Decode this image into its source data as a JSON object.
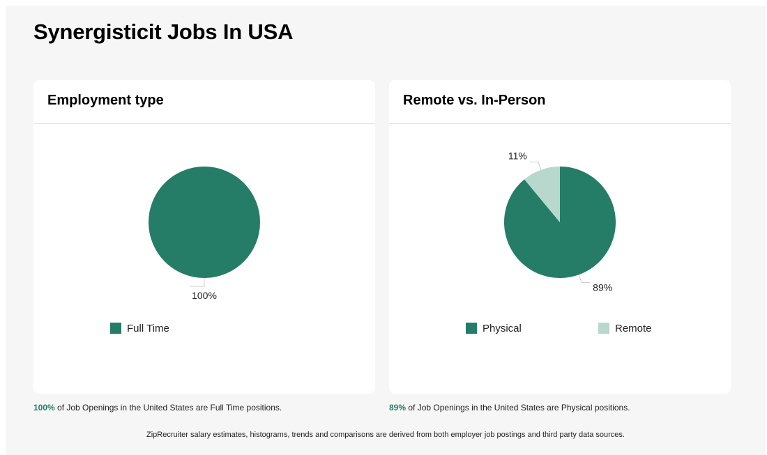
{
  "page": {
    "title": "Synergisticit Jobs In USA"
  },
  "colors": {
    "primary": "#267d67",
    "secondary": "#b8d8ce",
    "leader": "#cccccc"
  },
  "chart_data": [
    {
      "type": "pie",
      "title": "Employment type",
      "categories": [
        "Full Time"
      ],
      "values": [
        100
      ],
      "labels": [
        "100%"
      ],
      "legend_position": "bottom"
    },
    {
      "type": "pie",
      "title": "Remote vs. In-Person",
      "categories": [
        "Physical",
        "Remote"
      ],
      "values": [
        89,
        11
      ],
      "labels": [
        "89%",
        "11%"
      ],
      "legend_position": "bottom"
    }
  ],
  "captions": [
    {
      "highlight": "100%",
      "text": " of Job Openings in the United States are Full Time positions."
    },
    {
      "highlight": "89%",
      "text": " of Job Openings in the United States are Physical positions."
    }
  ],
  "footer": "ZipRecruiter salary estimates, histograms, trends and comparisons are derived from both employer job postings and third party data sources."
}
